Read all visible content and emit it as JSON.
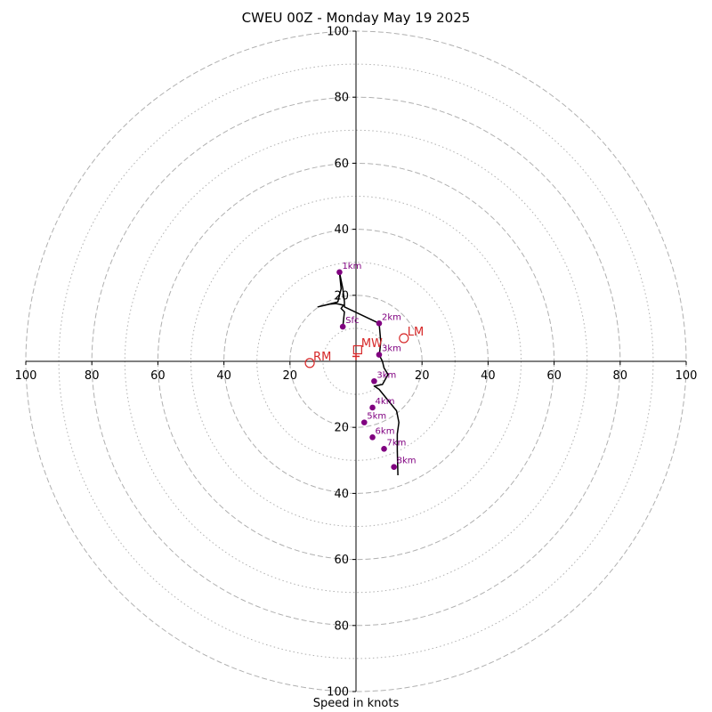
{
  "chart_data": {
    "type": "hodograph",
    "title": "CWEU 00Z - Monday May 19 2025",
    "xlabel": "Speed in knots",
    "max_speed": 100,
    "major_rings": [
      20,
      40,
      60,
      80,
      100
    ],
    "minor_rings": [
      10,
      30,
      50,
      70,
      90
    ],
    "x_tick_labels": [
      "100",
      "80",
      "60",
      "40",
      "20",
      "20",
      "40",
      "60",
      "80",
      "100"
    ],
    "x_tick_values": [
      -100,
      -80,
      -60,
      -40,
      -20,
      20,
      40,
      60,
      80,
      100
    ],
    "y_tick_labels": [
      "100",
      "80",
      "60",
      "40",
      "20",
      "20",
      "40",
      "60",
      "80",
      "100"
    ],
    "y_tick_values": [
      100,
      80,
      60,
      40,
      20,
      -20,
      -40,
      -60,
      -80,
      -100
    ],
    "colors": {
      "trace": "#000000",
      "height_points": "#800080",
      "vectors": "#d62728",
      "rings": "#b0b0b0",
      "axes": "#000000"
    },
    "trace": [
      [
        -4,
        10.5
      ],
      [
        -3.5,
        15
      ],
      [
        -4.5,
        16
      ],
      [
        -3.8,
        17
      ],
      [
        -6,
        17.5
      ],
      [
        -8,
        17.3
      ],
      [
        -11.5,
        16.5
      ],
      [
        -5.5,
        18
      ],
      [
        -4.5,
        22
      ],
      [
        -5,
        27
      ],
      [
        -5,
        27
      ],
      [
        -4,
        22
      ],
      [
        -3.5,
        18
      ],
      [
        -3.5,
        16.5
      ],
      [
        7,
        11.5
      ],
      [
        7.5,
        6
      ],
      [
        7.2,
        3
      ],
      [
        7,
        2
      ],
      [
        8,
        0
      ],
      [
        8.5,
        -2
      ],
      [
        9.7,
        -4
      ],
      [
        8,
        -7
      ],
      [
        5.5,
        -7.5
      ],
      [
        7,
        -8.5
      ],
      [
        12.3,
        -15
      ],
      [
        13,
        -18.5
      ],
      [
        12.5,
        -22
      ],
      [
        12.5,
        -27
      ],
      [
        12.7,
        -34.5
      ]
    ],
    "height_points": [
      {
        "label": "Sfc",
        "u": -4,
        "v": 10.5
      },
      {
        "label": "1km",
        "u": -5,
        "v": 27
      },
      {
        "label": "2km",
        "u": 7,
        "v": 11.5
      },
      {
        "label": "3km",
        "u": 7,
        "v": 2
      },
      {
        "label": "3km",
        "u": 5.5,
        "v": -6
      },
      {
        "label": "4km",
        "u": 5,
        "v": -14
      },
      {
        "label": "5km",
        "u": 2.5,
        "v": -18.5
      },
      {
        "label": "6km",
        "u": 5,
        "v": -23
      },
      {
        "label": "7km",
        "u": 8.5,
        "v": -26.5
      },
      {
        "label": "8km",
        "u": 11.5,
        "v": -32
      }
    ],
    "vectors": [
      {
        "label": "LM",
        "u": 14.5,
        "v": 7,
        "marker": "circle"
      },
      {
        "label": "RM",
        "u": -14,
        "v": -0.5,
        "marker": "circle"
      },
      {
        "label": "MW",
        "u": 0.5,
        "v": 3.5,
        "marker": "square"
      },
      {
        "label": "",
        "u": 0,
        "v": 1.5,
        "marker": "plus"
      }
    ]
  }
}
